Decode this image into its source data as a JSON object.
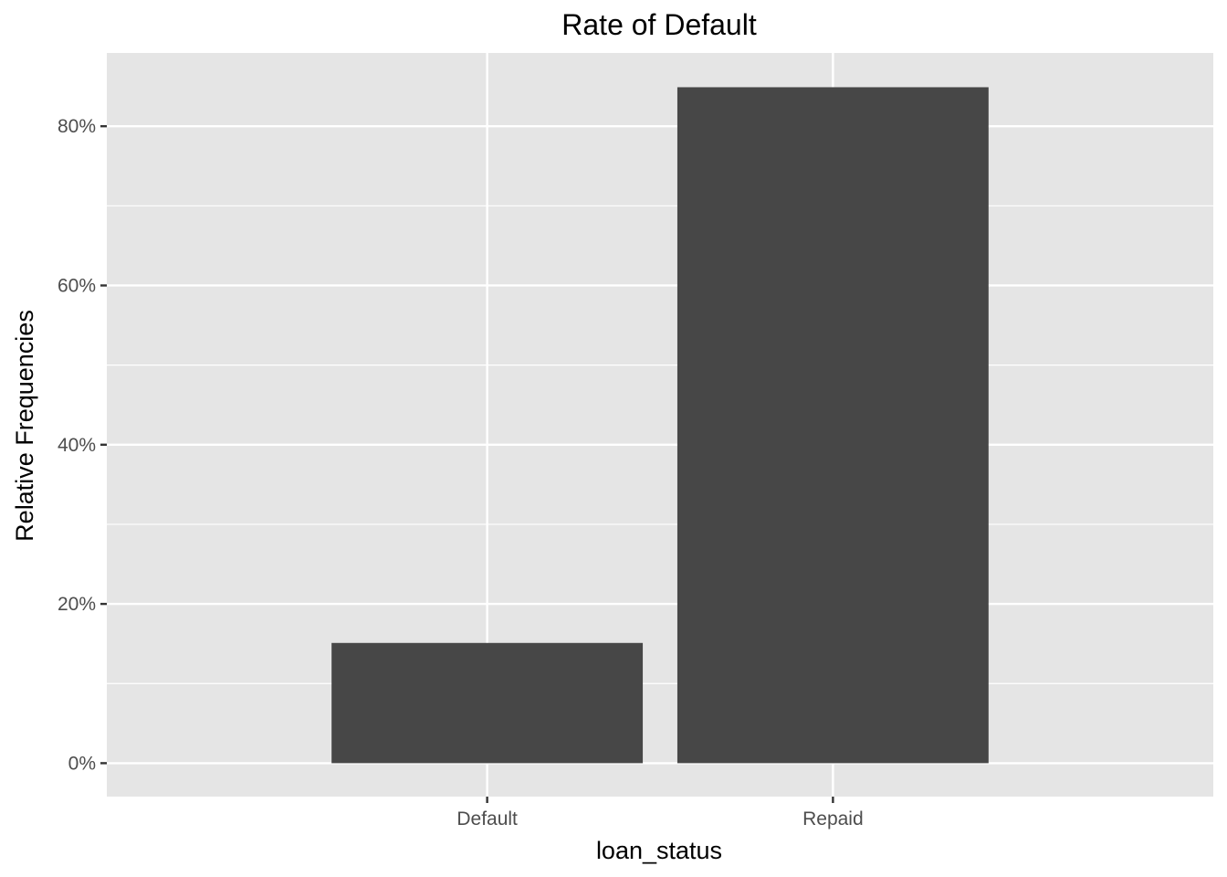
{
  "chart_data": {
    "type": "bar",
    "title": "Rate of Default",
    "xlabel": "loan_status",
    "ylabel": "Relative Frequencies",
    "categories": [
      "Default",
      "Repaid"
    ],
    "values": [
      15.1,
      84.9
    ],
    "ylim": [
      -4.2,
      89.2
    ],
    "yticks": [
      0,
      20,
      40,
      60,
      80
    ],
    "ytick_labels": [
      "0%",
      "20%",
      "40%",
      "60%",
      "80%"
    ],
    "grid": true,
    "bar_color": "#474747",
    "panel_color": "#e5e5e5",
    "grid_color": "#ffffff"
  }
}
